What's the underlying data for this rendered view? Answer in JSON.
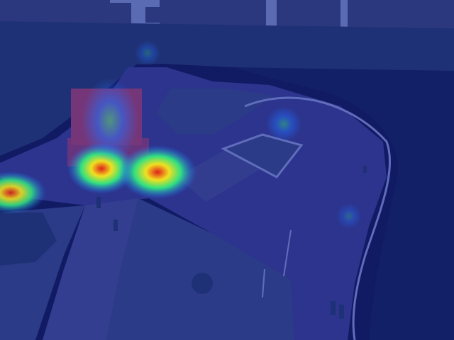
{
  "image": {
    "kind": "aerial-park-heatmap-overlay",
    "overlay_tint": "#1a2a9a",
    "colors": {
      "sky": "#8fa0c8",
      "buildings": "#3a4466",
      "trees": "#24375a",
      "water": "#0c1840",
      "plaza": "#3b3d86",
      "lawn": "#3a4a7a",
      "path": "#4a4f8a",
      "railing": "#9aa4d8",
      "bouncy_castle": "#c04060",
      "heat_hot": "#e0201a",
      "heat_warm": "#f0e020",
      "heat_mid": "#30e080",
      "heat_cool": "#2070ff"
    },
    "heatmap_hotspots": [
      {
        "name": "castle-left-hotspot",
        "intensity": 1.0
      },
      {
        "name": "castle-right-hotspot",
        "intensity": 1.0
      },
      {
        "name": "left-edge-hotspot",
        "intensity": 0.9
      },
      {
        "name": "castle-top-hotspot",
        "intensity": 0.55
      },
      {
        "name": "plaza-lamp-hotspot",
        "intensity": 0.45
      },
      {
        "name": "riverside-hotspot",
        "intensity": 0.3
      },
      {
        "name": "far-path-hotspot",
        "intensity": 0.3
      }
    ]
  }
}
